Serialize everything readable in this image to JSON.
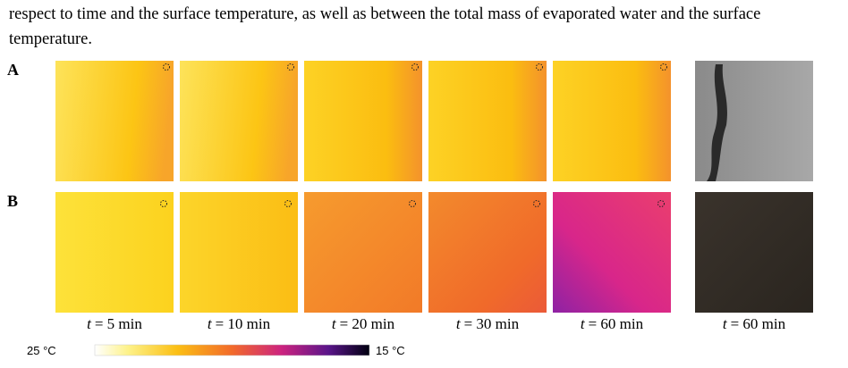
{
  "paragraph": {
    "lines": [
      "respect to time and the surface temperature, as well as between the total mass of evaporated water and the surface",
      "temperature."
    ]
  },
  "figure": {
    "rows": [
      {
        "label": "A"
      },
      {
        "label": "B"
      }
    ],
    "captions": [
      {
        "var": "t",
        "text": "= 5 min"
      },
      {
        "var": "t",
        "text": "= 10 min"
      },
      {
        "var": "t",
        "text": "= 20 min"
      },
      {
        "var": "t",
        "text": "= 30 min"
      },
      {
        "var": "t",
        "text": "= 60 min"
      },
      {
        "var": "t",
        "text": "= 60 min"
      }
    ],
    "colorbar": {
      "max_label": "25 °C",
      "min_label": "15 °C"
    }
  }
}
